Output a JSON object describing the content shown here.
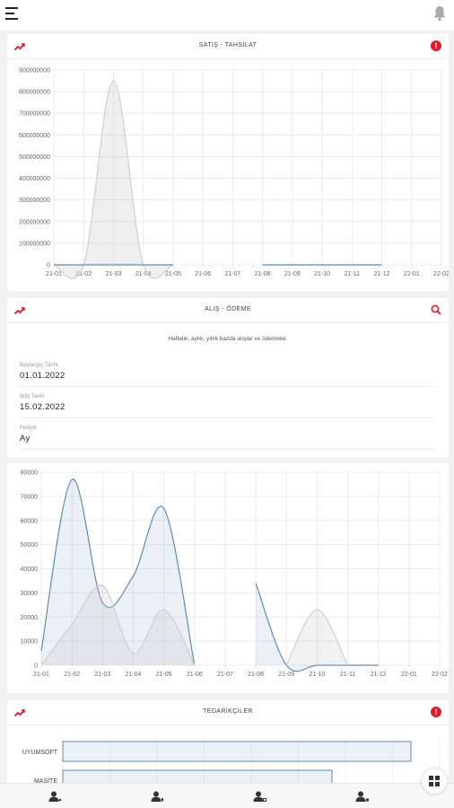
{
  "header": {
    "menu_icon": "hamburger-icon",
    "notification_icon": "bell-icon"
  },
  "satis_card": {
    "title": "SATIŞ - TAHSİLAT",
    "icon": "trend-icon",
    "action_icon": "info-icon",
    "info_symbol": "!"
  },
  "alis_card": {
    "title": "ALIŞ - ÖDEME",
    "icon": "trend-icon",
    "action_icon": "search-icon",
    "description": "Haftalık, aylık, yıllık bazda alışlar ve ödemeler.",
    "start_date_label": "Başlangıç Tarihi",
    "start_date_value": "01.01.2022",
    "end_date_label": "Bitiş Tarihi",
    "end_date_value": "15.02.2022",
    "period_label": "Periyot",
    "period_value": "Ay"
  },
  "tedarikciler_card": {
    "title": "TEDARİKÇİLER",
    "icon": "trend-icon",
    "action_icon": "info-icon",
    "info_symbol": "!"
  },
  "bottom_nav": {
    "items": [
      "user-icon",
      "user-icon",
      "users-icon",
      "user-icon"
    ],
    "fab_icon": "grid-icon"
  },
  "colors": {
    "accent": "#e3192a",
    "series_blue": "#5b8db5",
    "series_gray": "#cfcfcf"
  },
  "chart_data": [
    {
      "type": "area",
      "x": [
        "21-01",
        "21-02",
        "21-03",
        "21-04",
        "21-05",
        "21-06",
        "21-07",
        "21-08",
        "21-09",
        "21-10",
        "21-11",
        "21-12",
        "22-01",
        "22-02"
      ],
      "series": [
        {
          "values": [
            0,
            0,
            850000000,
            0,
            0,
            null,
            null,
            0,
            0,
            0,
            0,
            0,
            null,
            null
          ]
        }
      ],
      "ylim": [
        0,
        900000000
      ],
      "yticks": [
        "0",
        "100000000",
        "200000000",
        "300000000",
        "400000000",
        "500000000",
        "600000000",
        "700000000",
        "800000000",
        "900000000"
      ],
      "grid": true
    },
    {
      "type": "area",
      "x": [
        "21-01",
        "21-02",
        "21-03",
        "21-04",
        "21-05",
        "21-06",
        "21-07",
        "21-08",
        "21-09",
        "21-10",
        "21-11",
        "21-12",
        "22-01",
        "22-02"
      ],
      "series": [
        {
          "values": [
            6000,
            77000,
            26000,
            37000,
            65000,
            0,
            null,
            34000,
            0,
            0,
            0,
            0,
            null,
            null
          ]
        },
        {
          "values": [
            0,
            17000,
            33000,
            5000,
            23000,
            0,
            null,
            null,
            0,
            23000,
            0,
            null,
            null,
            null
          ]
        }
      ],
      "ylim": [
        0,
        80000
      ],
      "yticks": [
        "0",
        "10000",
        "20000",
        "30000",
        "40000",
        "50000",
        "60000",
        "70000",
        "80000"
      ],
      "grid": true
    },
    {
      "type": "bar",
      "categories": [
        "UYUMSOFT",
        "MASİTE"
      ],
      "grid": true
    }
  ]
}
